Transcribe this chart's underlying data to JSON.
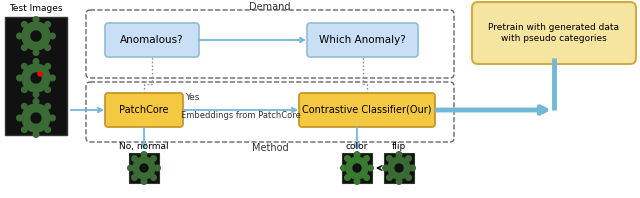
{
  "title": "Demand",
  "method_label": "Method",
  "yes_label": "Yes",
  "embed_label": "Embeddings from PatchCore",
  "test_images_label": "Test Images",
  "anomalous_label": "Anomalous?",
  "which_anomaly_label": "Which Anomaly?",
  "patchcore_label": "PatchCore",
  "contrastive_label": "Contrastive Classifier(Our)",
  "pretrain_label": "Pretrain with generated data\nwith pseudo categories",
  "no_normal_label": "No, normal",
  "color_label": "color",
  "flip_label": "flip",
  "bg_color": "#ffffff",
  "demand_box_color": "#c8dff5",
  "patchcore_box_color": "#f5c842",
  "contrastive_box_color": "#f5c842",
  "pretrain_box_color": "#f5e5a0",
  "arrow_color": "#74b8d8",
  "dashed_border_color": "#666666"
}
